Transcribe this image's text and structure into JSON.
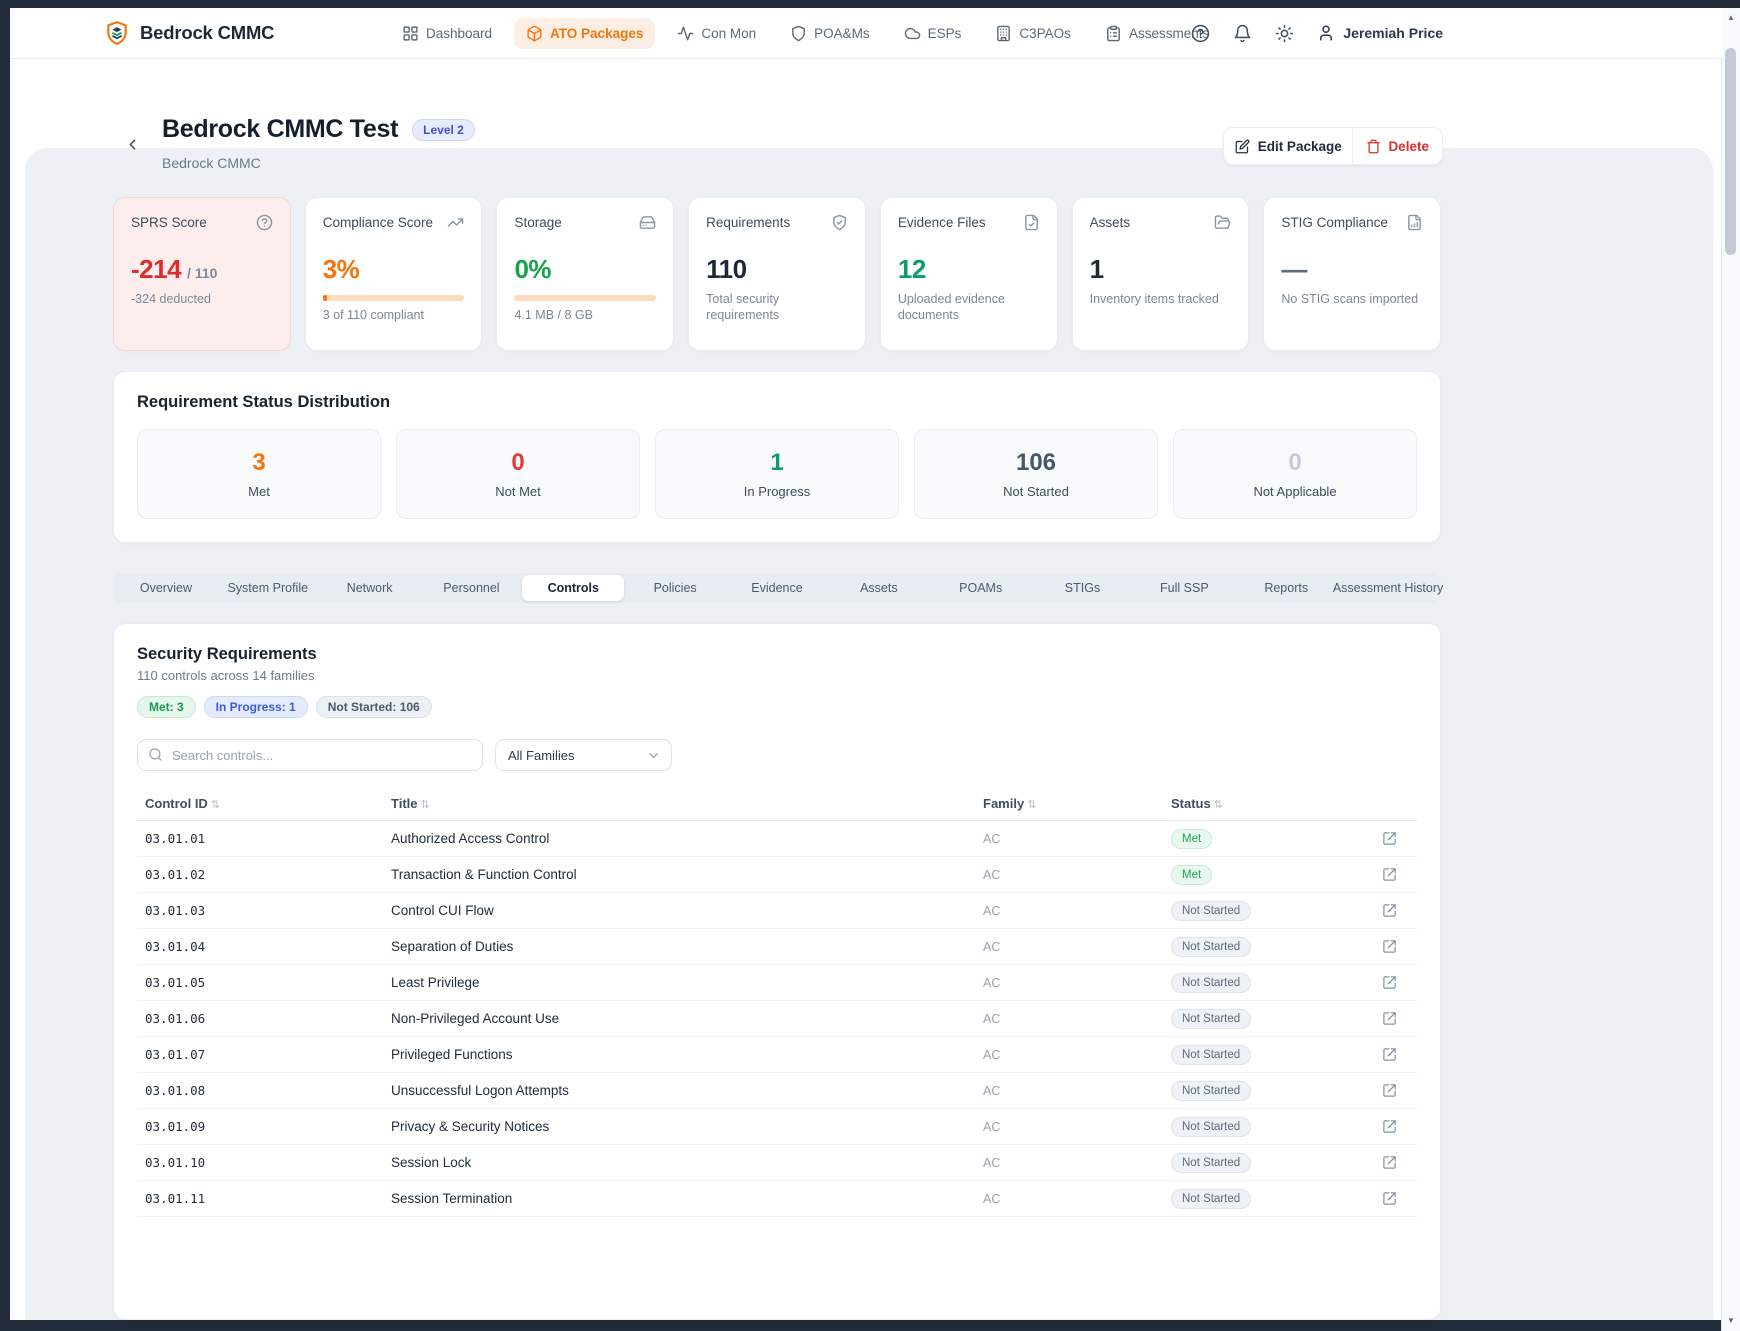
{
  "colors": {
    "accent_orange": "#f4750c",
    "danger_red": "#dd2c2c",
    "success_green": "#18a34a",
    "teal_green": "#0d9b6c",
    "brand_navy": "#1c2838"
  },
  "header": {
    "brand": "Bedrock CMMC",
    "nav": [
      {
        "label": "Dashboard",
        "icon": "grid-icon",
        "active": false
      },
      {
        "label": "ATO Packages",
        "icon": "package-icon",
        "active": true
      },
      {
        "label": "Con Mon",
        "icon": "activity-icon",
        "active": false
      },
      {
        "label": "POA&Ms",
        "icon": "shield-icon",
        "active": false
      },
      {
        "label": "ESPs",
        "icon": "cloud-icon",
        "active": false
      },
      {
        "label": "C3PAOs",
        "icon": "building-icon",
        "active": false
      },
      {
        "label": "Assessments",
        "icon": "clipboard-icon",
        "active": false
      }
    ],
    "user_name": "Jeremiah Price"
  },
  "page_header": {
    "title": "Bedrock CMMC Test",
    "level_badge": "Level 2",
    "subtitle": "Bedrock CMMC",
    "actions": {
      "edit": "Edit Package",
      "delete": "Delete"
    }
  },
  "stats": [
    {
      "title": "SPRS Score",
      "value": "-214",
      "suffix": "/ 110",
      "subtext": "-324 deducted"
    },
    {
      "title": "Compliance Score",
      "value": "3%",
      "subtext": "3 of 110 compliant",
      "progress_pct": 3
    },
    {
      "title": "Storage",
      "value": "0%",
      "subtext": "4.1 MB / 8 GB",
      "progress_pct": 0
    },
    {
      "title": "Requirements",
      "value": "110",
      "subtext": "Total security requirements"
    },
    {
      "title": "Evidence Files",
      "value": "12",
      "subtext": "Uploaded evidence documents"
    },
    {
      "title": "Assets",
      "value": "1",
      "subtext": "Inventory items tracked"
    },
    {
      "title": "STIG Compliance",
      "value": "—",
      "subtext": "No STIG scans imported"
    }
  ],
  "distribution": {
    "title": "Requirement Status Distribution",
    "items": [
      {
        "value": "3",
        "label": "Met",
        "color": "#f4750c"
      },
      {
        "value": "0",
        "label": "Not Met",
        "color": "#e23b3b"
      },
      {
        "value": "1",
        "label": "In Progress",
        "color": "#0d9b6c"
      },
      {
        "value": "106",
        "label": "Not Started",
        "color": "#46566b"
      },
      {
        "value": "0",
        "label": "Not Applicable",
        "color": "#c3ccd8"
      }
    ]
  },
  "tabs": [
    {
      "label": "Overview",
      "active": false
    },
    {
      "label": "System Profile",
      "active": false
    },
    {
      "label": "Network",
      "active": false
    },
    {
      "label": "Personnel",
      "active": false
    },
    {
      "label": "Controls",
      "active": true
    },
    {
      "label": "Policies",
      "active": false
    },
    {
      "label": "Evidence",
      "active": false
    },
    {
      "label": "Assets",
      "active": false
    },
    {
      "label": "POAMs",
      "active": false
    },
    {
      "label": "STIGs",
      "active": false
    },
    {
      "label": "Full SSP",
      "active": false
    },
    {
      "label": "Reports",
      "active": false
    },
    {
      "label": "Assessment History",
      "active": false
    }
  ],
  "controls": {
    "title": "Security Requirements",
    "subtitle": "110 controls across 14 families",
    "summary_badges": [
      {
        "label": "Met: 3",
        "type": "met"
      },
      {
        "label": "In Progress: 1",
        "type": "in-progress"
      },
      {
        "label": "Not Started: 106",
        "type": "not-started"
      }
    ],
    "search_placeholder": "Search controls...",
    "family_filter_value": "All Families",
    "table": {
      "columns": [
        "Control ID",
        "Title",
        "Family",
        "Status"
      ],
      "rows": [
        {
          "id": "03.01.01",
          "title": "Authorized Access Control",
          "family": "AC",
          "status": "Met"
        },
        {
          "id": "03.01.02",
          "title": "Transaction & Function Control",
          "family": "AC",
          "status": "Met"
        },
        {
          "id": "03.01.03",
          "title": "Control CUI Flow",
          "family": "AC",
          "status": "Not Started"
        },
        {
          "id": "03.01.04",
          "title": "Separation of Duties",
          "family": "AC",
          "status": "Not Started"
        },
        {
          "id": "03.01.05",
          "title": "Least Privilege",
          "family": "AC",
          "status": "Not Started"
        },
        {
          "id": "03.01.06",
          "title": "Non-Privileged Account Use",
          "family": "AC",
          "status": "Not Started"
        },
        {
          "id": "03.01.07",
          "title": "Privileged Functions",
          "family": "AC",
          "status": "Not Started"
        },
        {
          "id": "03.01.08",
          "title": "Unsuccessful Logon Attempts",
          "family": "AC",
          "status": "Not Started"
        },
        {
          "id": "03.01.09",
          "title": "Privacy & Security Notices",
          "family": "AC",
          "status": "Not Started"
        },
        {
          "id": "03.01.10",
          "title": "Session Lock",
          "family": "AC",
          "status": "Not Started"
        },
        {
          "id": "03.01.11",
          "title": "Session Termination",
          "family": "AC",
          "status": "Not Started"
        }
      ]
    }
  }
}
